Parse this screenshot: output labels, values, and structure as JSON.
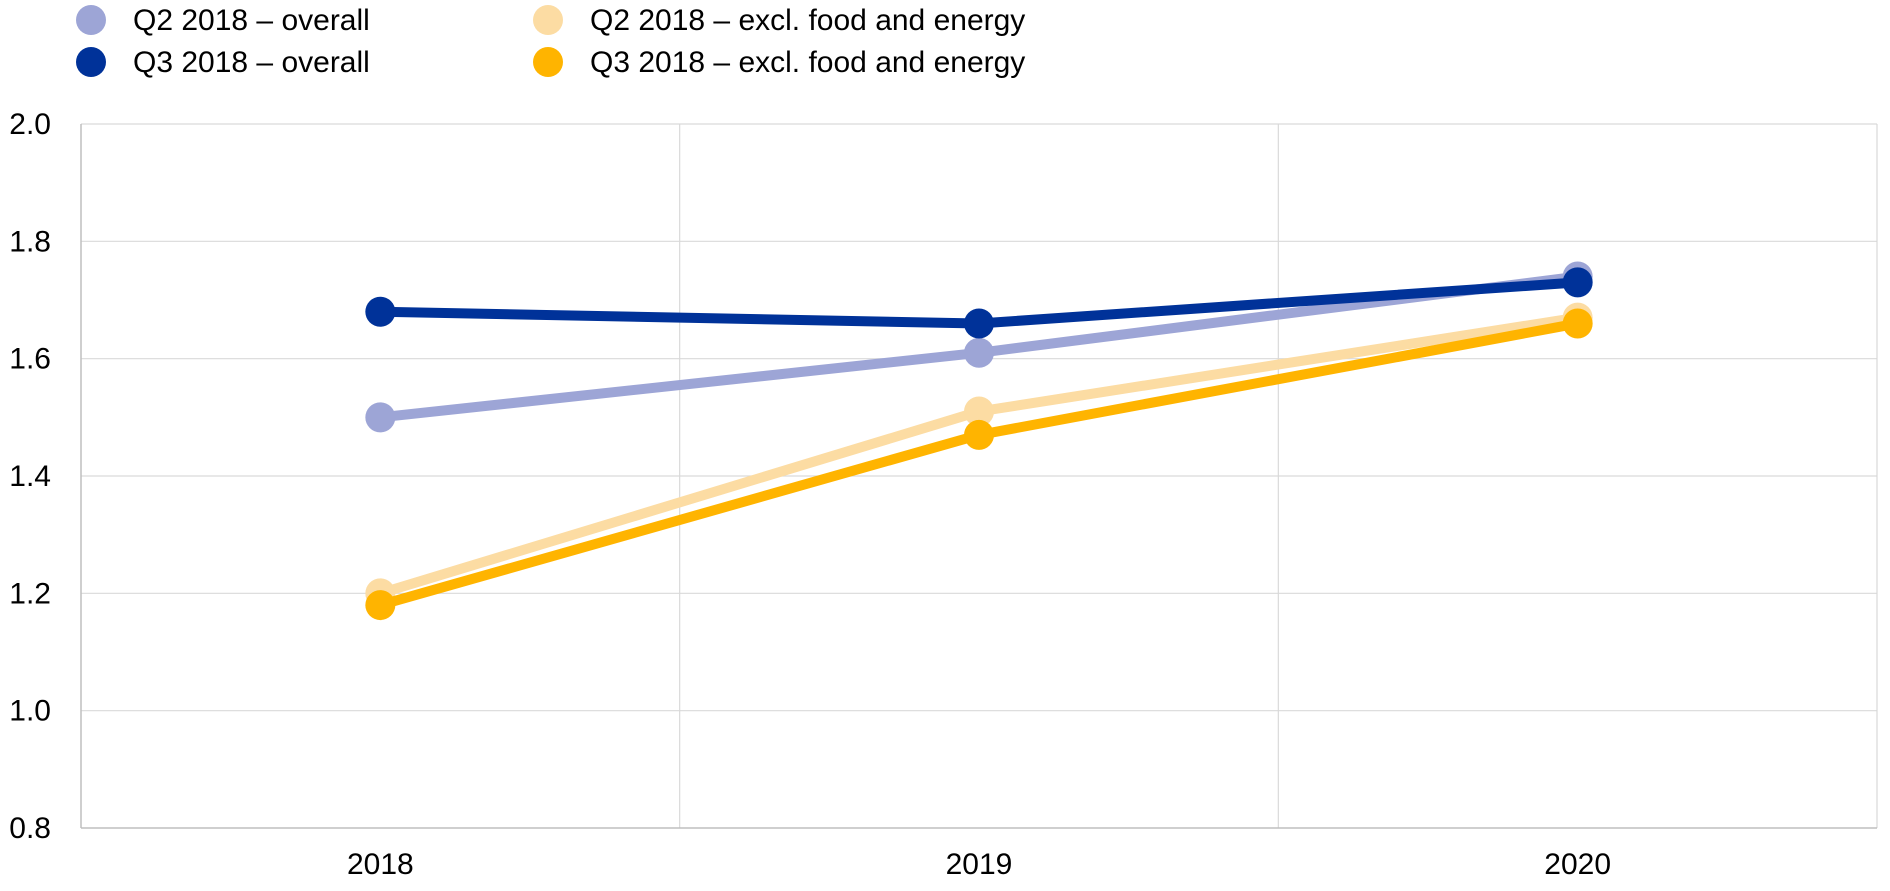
{
  "chart_data": {
    "type": "line",
    "title": "",
    "xlabel": "",
    "ylabel": "",
    "categories": [
      "2018",
      "2019",
      "2020"
    ],
    "ylim": [
      0.8,
      2.0
    ],
    "yticks": [
      0.8,
      1.0,
      1.2,
      1.4,
      1.6,
      1.8,
      2.0
    ],
    "ytick_labels": [
      "0.8",
      "1.0",
      "1.2",
      "1.4",
      "1.6",
      "1.8",
      "2.0"
    ],
    "grid": true,
    "legend_position": "top-left",
    "series": [
      {
        "name": "Q2 2018 – overall",
        "values": [
          1.5,
          1.61,
          1.74
        ],
        "color": "#9DA5D6"
      },
      {
        "name": "Q3 2018 – overall",
        "values": [
          1.68,
          1.66,
          1.73
        ],
        "color": "#003299"
      },
      {
        "name": "Q2 2018 – excl. food and energy",
        "values": [
          1.2,
          1.51,
          1.67
        ],
        "color": "#FCDCA3"
      },
      {
        "name": "Q3 2018 – excl. food and energy",
        "values": [
          1.18,
          1.47,
          1.66
        ],
        "color": "#FFB400"
      }
    ]
  }
}
